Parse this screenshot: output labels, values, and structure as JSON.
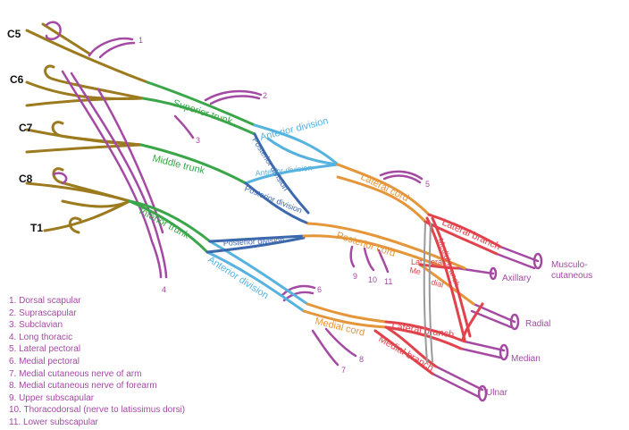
{
  "colors": {
    "root": "#9c7a1e",
    "nerve": "#a44aa3",
    "trunk": "#3aa64a",
    "anterior": "#56b3e0",
    "posterior": "#3c68ad",
    "lateral_cord": "#e5963a",
    "medial": "#e0434b",
    "artery": "#9a9a9a",
    "root_text": "#111111"
  },
  "roots": [
    "C5",
    "C6",
    "C7",
    "C8",
    "T1"
  ],
  "trunks": {
    "superior": "Superior trunk",
    "middle": "Middle trunk",
    "inferior": "Inferior trunk"
  },
  "divisions": {
    "anterior_upper": "Anterior division",
    "anterior_middle": "Anterior division",
    "anterior_lower": "Anterior division",
    "posterior_upper": "Posterior division",
    "posterior_middle": "Posterior division",
    "posterior_lower": "Posterior division"
  },
  "cords": {
    "lateral": "Lateral cord",
    "posterior": "Posterior cord",
    "medial": "Medial cord"
  },
  "branches": {
    "lateral_upper": "Lateral branch",
    "medial_upper": "Medial branch",
    "lateral_lower": "Lateral branch",
    "medial_lower": "Medial branch",
    "lat_fragment": "Lat",
    "eral_fragment": "eral",
    "me_fragment": "Me",
    "dial_fragment": "dial"
  },
  "terminals": {
    "musculocutaneous_1": "Musculo-",
    "musculocutaneous_2": "cutaneous",
    "axillary": "Axillary",
    "radial": "Radial",
    "median": "Median",
    "ulnar": "Ulnar"
  },
  "numbers": [
    "1",
    "2",
    "3",
    "4",
    "5",
    "6",
    "7",
    "8",
    "9",
    "10",
    "11"
  ],
  "legend": [
    "1.  Dorsal scapular",
    "2.  Suprascapular",
    "3.  Subclavian",
    "4.  Long thoracic",
    "5.  Lateral pectoral",
    "6.  Medial pectoral",
    "7.  Medial cutaneous nerve of arm",
    "8.  Medial cutaneous nerve of forearm",
    "9.  Upper subscapular",
    "10.  Thoracodorsal (nerve to latissimus dorsi)",
    "11.  Lower subscapular"
  ]
}
